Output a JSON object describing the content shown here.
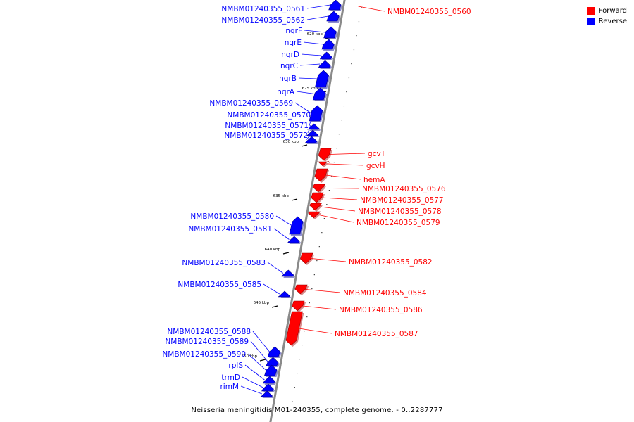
{
  "legend": {
    "forward_label": "Forward",
    "reverse_label": "Reverse",
    "forward_color": "#ff0000",
    "reverse_color": "#0000ff"
  },
  "caption": "Neisseria meningitidis M01-240355, complete genome. - 0..2287777",
  "ticks": [
    {
      "label": "620 kbp"
    },
    {
      "label": "625 kbp"
    },
    {
      "label": "630 kbp"
    },
    {
      "label": "635 kbp"
    },
    {
      "label": "640 kbp"
    },
    {
      "label": "645 kbp"
    },
    {
      "label": "650 kbp"
    }
  ],
  "genes": [
    {
      "name": "NMBM01240355_0561",
      "strand": "reverse"
    },
    {
      "name": "NMBM01240355_0560",
      "strand": "forward"
    },
    {
      "name": "NMBM01240355_0562",
      "strand": "reverse"
    },
    {
      "name": "nqrF",
      "strand": "reverse"
    },
    {
      "name": "nqrE",
      "strand": "reverse"
    },
    {
      "name": "nqrD",
      "strand": "reverse"
    },
    {
      "name": "nqrC",
      "strand": "reverse"
    },
    {
      "name": "nqrB",
      "strand": "reverse"
    },
    {
      "name": "nqrA",
      "strand": "reverse"
    },
    {
      "name": "NMBM01240355_0569",
      "strand": "reverse"
    },
    {
      "name": "NMBM01240355_0570",
      "strand": "reverse"
    },
    {
      "name": "NMBM01240355_0571",
      "strand": "reverse"
    },
    {
      "name": "NMBM01240355_0572",
      "strand": "reverse"
    },
    {
      "name": "gcvT",
      "strand": "forward"
    },
    {
      "name": "gcvH",
      "strand": "forward"
    },
    {
      "name": "hemA",
      "strand": "forward"
    },
    {
      "name": "NMBM01240355_0576",
      "strand": "forward"
    },
    {
      "name": "NMBM01240355_0577",
      "strand": "forward"
    },
    {
      "name": "NMBM01240355_0578",
      "strand": "forward"
    },
    {
      "name": "NMBM01240355_0579",
      "strand": "forward"
    },
    {
      "name": "NMBM01240355_0580",
      "strand": "reverse"
    },
    {
      "name": "NMBM01240355_0581",
      "strand": "reverse"
    },
    {
      "name": "NMBM01240355_0582",
      "strand": "forward"
    },
    {
      "name": "NMBM01240355_0583",
      "strand": "reverse"
    },
    {
      "name": "NMBM01240355_0584",
      "strand": "forward"
    },
    {
      "name": "NMBM01240355_0585",
      "strand": "reverse"
    },
    {
      "name": "NMBM01240355_0586",
      "strand": "forward"
    },
    {
      "name": "NMBM01240355_0587",
      "strand": "forward"
    },
    {
      "name": "NMBM01240355_0588",
      "strand": "reverse"
    },
    {
      "name": "NMBM01240355_0589",
      "strand": "reverse"
    },
    {
      "name": "NMBM01240355_0590",
      "strand": "reverse"
    },
    {
      "name": "rplS",
      "strand": "reverse"
    },
    {
      "name": "trmD",
      "strand": "reverse"
    },
    {
      "name": "rimM",
      "strand": "reverse"
    }
  ]
}
